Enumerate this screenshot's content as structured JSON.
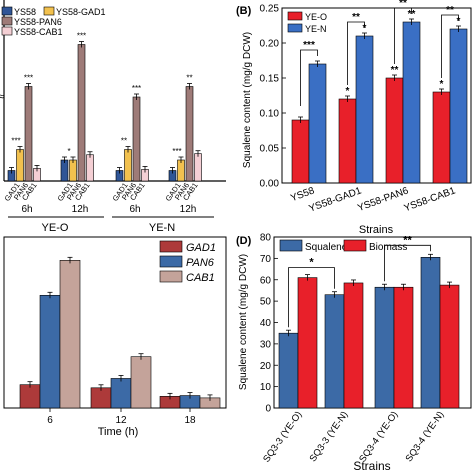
{
  "colors": {
    "blue": "#2f5597",
    "yellow": "#f2c14e",
    "mauve": "#9e7b78",
    "pink": "#f4cfd4",
    "red": "#e8202a",
    "blue_n": "#3a6fc4",
    "darkred": "#ad3a3a",
    "steel": "#3c6aa6",
    "tan": "#c4a39a"
  },
  "chart_data": [
    {
      "id": "A",
      "type": "bar",
      "panel_label": "",
      "legend": [
        "YS58",
        "YS58-GAD1",
        "YS58-PAN6",
        "YS58-CAB1"
      ],
      "group_labels": [
        "6h",
        "12h",
        "6h",
        "12h"
      ],
      "condition_labels": [
        "YE-O",
        "YE-N"
      ],
      "tick_labels": [
        "GAD1",
        "PAN6",
        "CAB1"
      ],
      "groups": [
        {
          "ys58": 1.0,
          "gad1": 3.0,
          "pan6": 9.0,
          "cab1": 1.2
        },
        {
          "ys58": 2.0,
          "gad1": 2.0,
          "pan6": 13.0,
          "cab1": 2.5
        },
        {
          "ys58": 1.0,
          "gad1": 3.0,
          "pan6": 8.0,
          "cab1": 1.1
        },
        {
          "ys58": 1.0,
          "gad1": 2.0,
          "pan6": 9.0,
          "cab1": 2.6
        }
      ],
      "significance": [
        "***",
        "***",
        "*",
        "***",
        "**",
        "***",
        "***",
        "**"
      ]
    },
    {
      "id": "B",
      "type": "bar",
      "panel_label": "(B)",
      "xlabel": "Strains",
      "ylabel": "Squalene content (mg/g DCW)",
      "ylim": [
        0,
        0.25
      ],
      "ticks": [
        "0.00",
        "0.05",
        "0.10",
        "0.15",
        "0.20",
        "0.25"
      ],
      "categories": [
        "YS58",
        "YS58-GAD1",
        "YS58-PAN6",
        "YS58-CAB1"
      ],
      "series": [
        {
          "name": "YE-O",
          "values": [
            0.09,
            0.12,
            0.15,
            0.13
          ]
        },
        {
          "name": "YE-N",
          "values": [
            0.17,
            0.21,
            0.23,
            0.22
          ]
        }
      ],
      "bar_marks": [
        "*",
        "**",
        "*",
        "*",
        "**",
        "*"
      ],
      "brackets": [
        "***",
        "**",
        "**",
        "**"
      ]
    },
    {
      "id": "C",
      "type": "bar",
      "panel_label": "",
      "xlabel": "Time (h)",
      "categories": [
        "6",
        "12",
        "18"
      ],
      "series": [
        {
          "name": "GAD1",
          "values": [
            3.0,
            2.6,
            1.5
          ]
        },
        {
          "name": "PAN6",
          "values": [
            14.5,
            3.8,
            1.6
          ]
        },
        {
          "name": "CAB1",
          "values": [
            19.0,
            6.6,
            1.3
          ]
        }
      ],
      "ylim": [
        0,
        22
      ]
    },
    {
      "id": "D",
      "type": "bar",
      "panel_label": "(D)",
      "xlabel": "Strains",
      "ylabel": "Squalene content (mg/g DCW)",
      "ylim": [
        0,
        80
      ],
      "ticks": [
        "0",
        "10",
        "20",
        "30",
        "40",
        "50",
        "60",
        "70",
        "80"
      ],
      "categories": [
        "SQ3-3 (YE-O)",
        "SQ3-3 (YE-N)",
        "SQ3-4 (YE-O)",
        "SQ3-4 (YE-N)"
      ],
      "series": [
        {
          "name": "Squalene",
          "values": [
            35,
            53,
            56.5,
            70.5
          ]
        },
        {
          "name": "Biomass",
          "values": [
            61,
            58.5,
            56.5,
            57.5
          ]
        }
      ],
      "brackets": [
        "*",
        "**"
      ]
    }
  ]
}
